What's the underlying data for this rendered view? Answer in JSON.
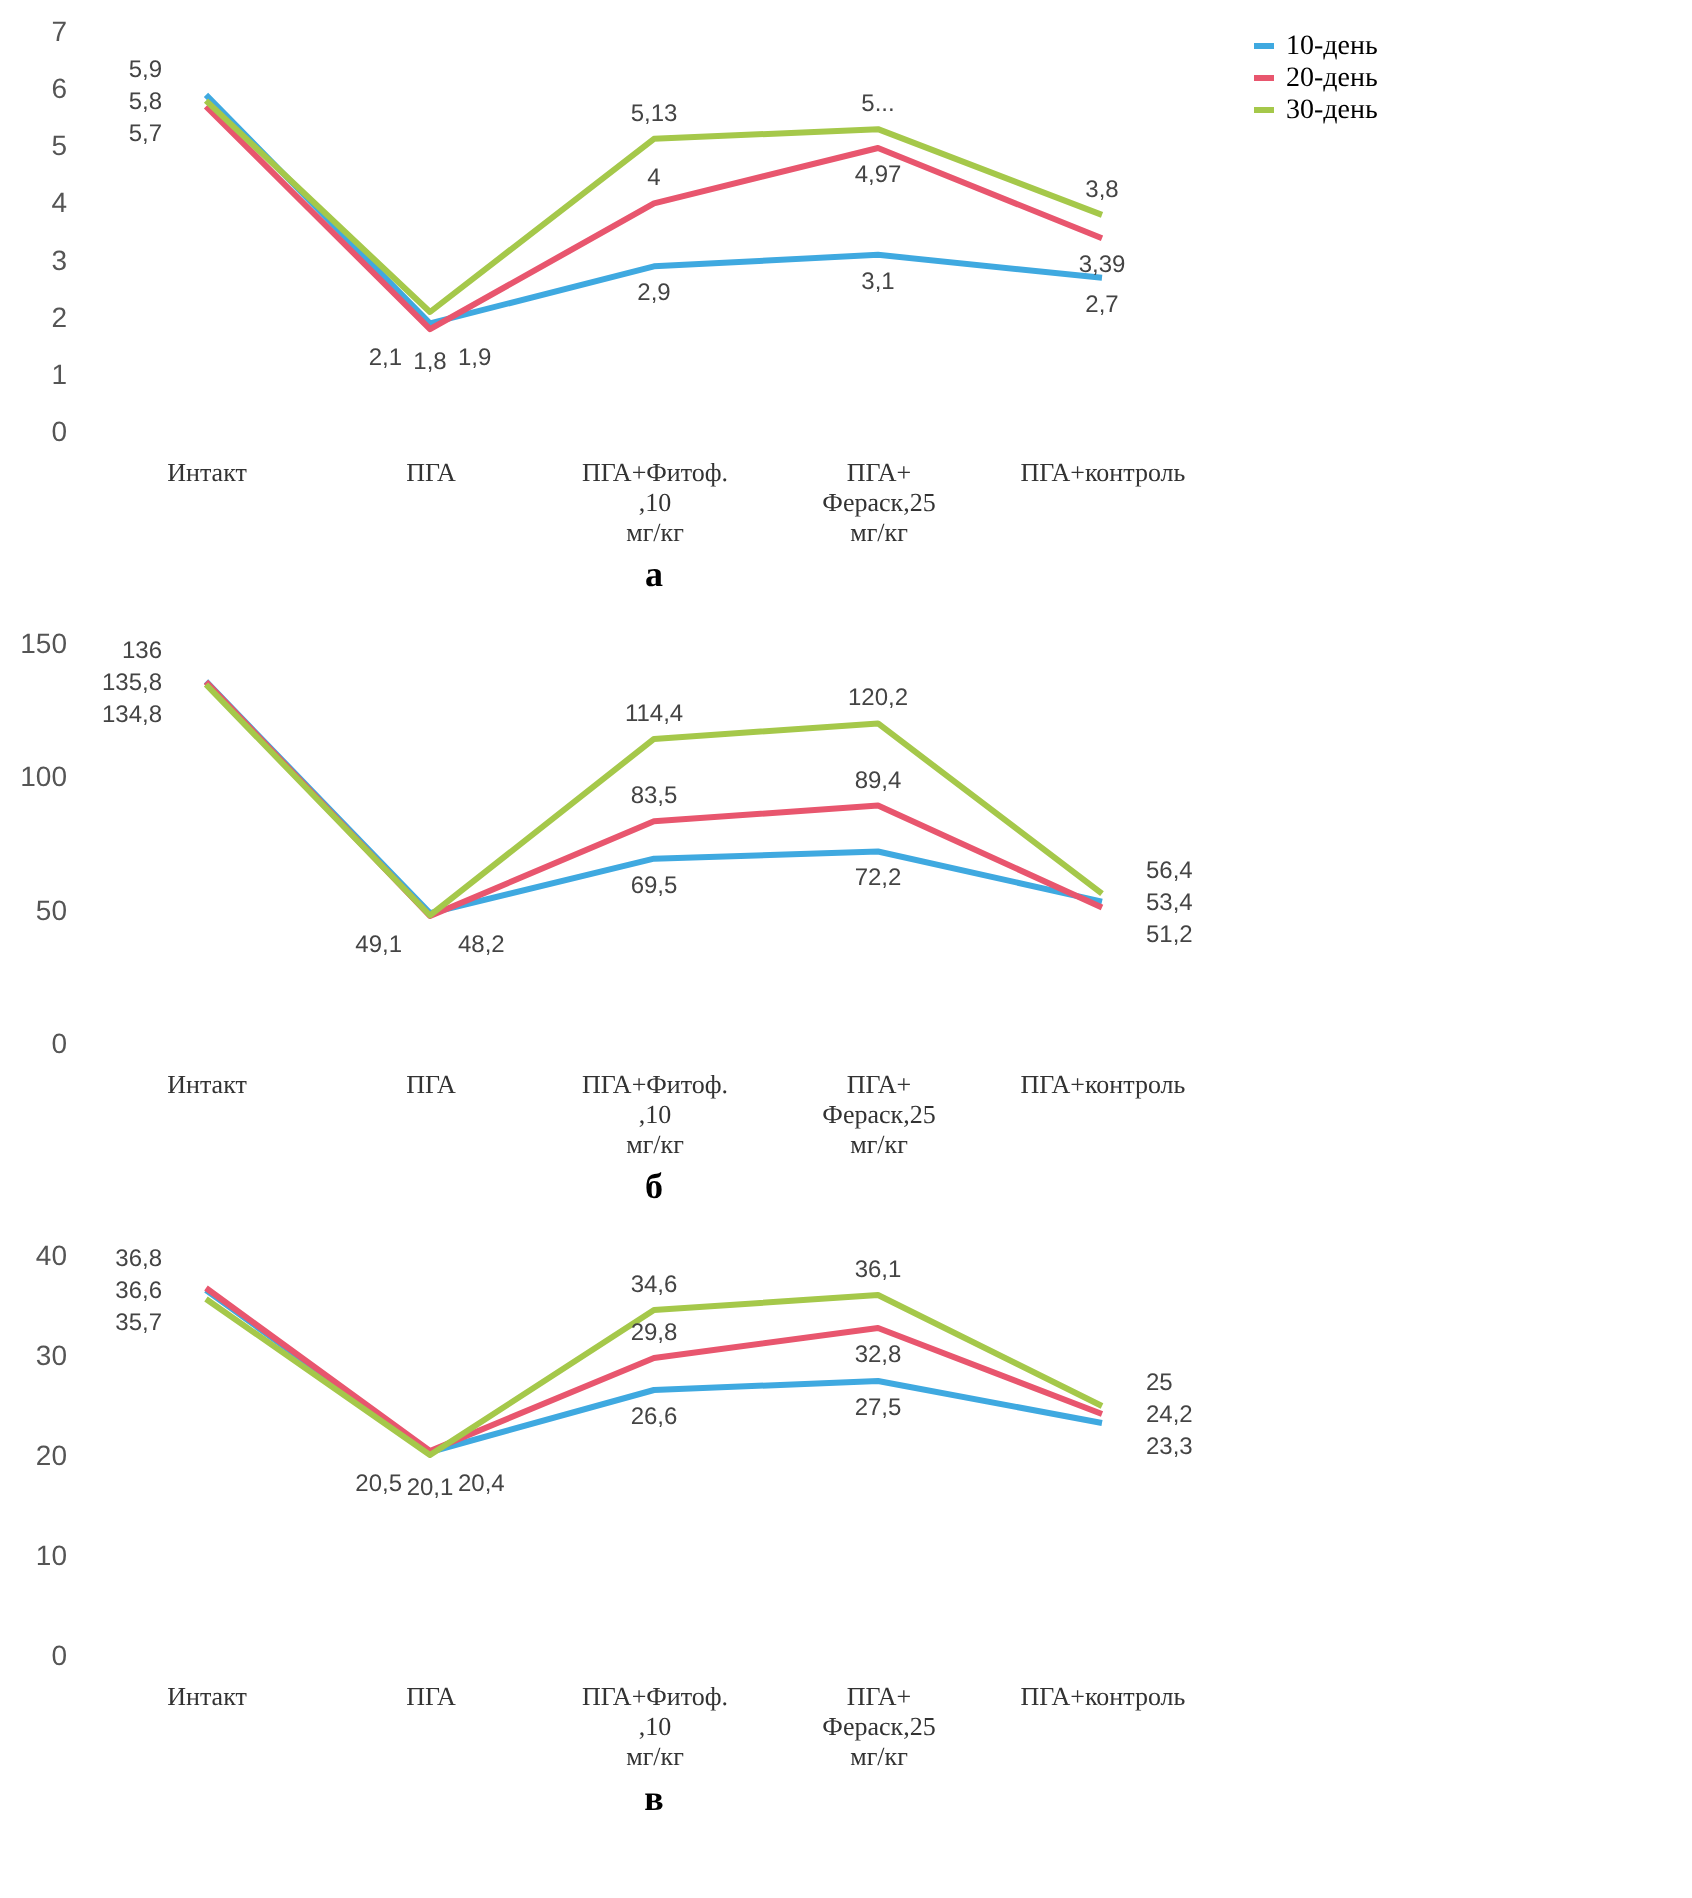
{
  "chart_data": [
    {
      "type": "line",
      "annotations": [
        "а"
      ],
      "categories": [
        "Интакт",
        "ПГА",
        "ПГА+Фитоф. ,10 мг/кг",
        "ПГА+ Фераск,25 мг/кг",
        "ПГА+контроль"
      ],
      "ylim": [
        0,
        7
      ],
      "yticks": [
        0,
        1,
        2,
        3,
        4,
        5,
        6,
        7
      ],
      "grid": false,
      "legend": "right",
      "marker": "none",
      "line_style": "solid",
      "series": [
        {
          "name": "10-день",
          "color": "#3fa9e0",
          "values": [
            5.9,
            1.9,
            2.9,
            3.1,
            2.7
          ],
          "value_labels": [
            "5,9",
            "1,9",
            "2,9",
            "3,1",
            "2,7"
          ]
        },
        {
          "name": "20-день",
          "color": "#e8566e",
          "values": [
            5.7,
            1.8,
            4,
            4.97,
            3.39
          ],
          "value_labels": [
            "5,7",
            "1,8",
            "4",
            "4,97",
            "3,39"
          ]
        },
        {
          "name": "30-день",
          "color": "#a5c84a",
          "values": [
            5.8,
            2.1,
            5.13,
            5.3,
            3.8
          ],
          "value_labels": [
            "5,8",
            "2,1",
            "5,13",
            "5...",
            "3,8"
          ]
        }
      ]
    },
    {
      "type": "line",
      "annotations": [
        "б"
      ],
      "categories": [
        "Интакт",
        "ПГА",
        "ПГА+Фитоф. ,10 мг/кг",
        "ПГА+ Фераск,25 мг/кг",
        "ПГА+контроль"
      ],
      "ylim": [
        0,
        150
      ],
      "yticks": [
        0,
        50,
        100,
        150
      ],
      "grid": false,
      "legend": "right",
      "marker": "none",
      "line_style": "solid",
      "series": [
        {
          "name": "10-день",
          "color": "#3fa9e0",
          "values": [
            136,
            49.1,
            69.5,
            72.2,
            53.4
          ],
          "value_labels": [
            "136",
            "49,1",
            "69,5",
            "72,2",
            "53,4"
          ]
        },
        {
          "name": "20-день",
          "color": "#e8566e",
          "values": [
            135.8,
            48,
            83.5,
            89.4,
            51.2
          ],
          "value_labels": [
            "135,8",
            null,
            "83,5",
            "89,4",
            "51,2"
          ]
        },
        {
          "name": "30-день",
          "color": "#a5c84a",
          "values": [
            134.8,
            48.2,
            114.4,
            120.2,
            56.4
          ],
          "value_labels": [
            "134,8",
            "48,2",
            "114,4",
            "120,2",
            "56,4"
          ]
        }
      ]
    },
    {
      "type": "line",
      "annotations": [
        "в"
      ],
      "categories": [
        "Интакт",
        "ПГА",
        "ПГА+Фитоф. ,10 мг/кг",
        "ПГА+ Фераск,25 мг/кг",
        "ПГА+контроль"
      ],
      "ylim": [
        0,
        40
      ],
      "yticks": [
        0,
        10,
        20,
        30,
        40
      ],
      "grid": false,
      "legend": "right",
      "marker": "none",
      "line_style": "solid",
      "series": [
        {
          "name": "10-день",
          "color": "#3fa9e0",
          "values": [
            36.6,
            20.4,
            26.6,
            27.5,
            23.3
          ],
          "value_labels": [
            "36,6",
            "20,4",
            "26,6",
            "27,5",
            "23,3"
          ]
        },
        {
          "name": "20-день",
          "color": "#e8566e",
          "values": [
            36.8,
            20.5,
            29.8,
            32.8,
            24.2
          ],
          "value_labels": [
            "36,8",
            "20,5",
            "29,8",
            "32,8",
            "24,2"
          ]
        },
        {
          "name": "30-день",
          "color": "#a5c84a",
          "values": [
            35.7,
            20.1,
            34.6,
            36.1,
            25
          ],
          "value_labels": [
            "35,7",
            "20,1",
            "34,6",
            "36,1",
            "25"
          ]
        }
      ]
    }
  ]
}
